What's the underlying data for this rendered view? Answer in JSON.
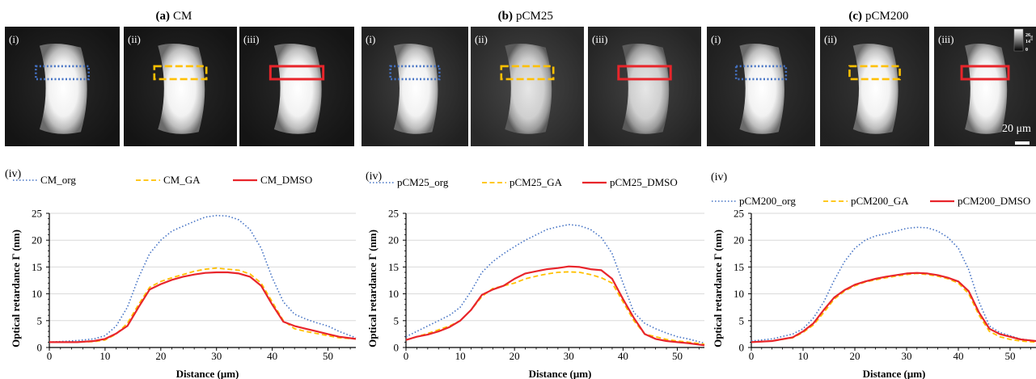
{
  "figure": {
    "panels": [
      {
        "id": "a",
        "title_letter": "(a)",
        "title_name": "CM",
        "image_labels": [
          "(i)",
          "(ii)",
          "(iii)"
        ],
        "plot_label": "(iv)",
        "legend": [
          {
            "name": "CM_org",
            "style": "dotted",
            "color": "#4472C4"
          },
          {
            "name": "CM_GA",
            "style": "dashed",
            "color": "#FFC000"
          },
          {
            "name": "CM_DMSO",
            "style": "solid",
            "color": "#E8252B"
          }
        ]
      },
      {
        "id": "b",
        "title_letter": "(b)",
        "title_name": "pCM25",
        "image_labels": [
          "(i)",
          "(ii)",
          "(iii)"
        ],
        "plot_label": "(iv)",
        "legend": [
          {
            "name": "pCM25_org",
            "style": "dotted",
            "color": "#4472C4"
          },
          {
            "name": "pCM25_GA",
            "style": "dashed",
            "color": "#FFC000"
          },
          {
            "name": "pCM25_DMSO",
            "style": "solid",
            "color": "#E8252B"
          }
        ]
      },
      {
        "id": "c",
        "title_letter": "(c)",
        "title_name": "pCM200",
        "image_labels": [
          "(i)",
          "(ii)",
          "(iii)"
        ],
        "plot_label": "(iv)",
        "legend": [
          {
            "name": "pCM200_org",
            "style": "dotted",
            "color": "#4472C4"
          },
          {
            "name": "pCM200_GA",
            "style": "dashed",
            "color": "#FFC000"
          },
          {
            "name": "pCM200_DMSO",
            "style": "solid",
            "color": "#E8252B"
          }
        ]
      }
    ],
    "colorbar": {
      "ticks": [
        "26",
        "14",
        "0"
      ],
      "unit": "nm"
    },
    "scale_bar": {
      "label": "20 μm"
    },
    "roi_colors": {
      "org": "#4472C4",
      "ga": "#FFC000",
      "dmso": "#E8252B"
    }
  },
  "chart_data": [
    {
      "type": "line",
      "title": "",
      "xlabel": "Distance (μm)",
      "ylabel": "Optical retardance Γ (nm)",
      "xlim": [
        0,
        55
      ],
      "ylim": [
        0,
        25
      ],
      "xticks": [
        0,
        10,
        20,
        30,
        40,
        50
      ],
      "yticks": [
        0,
        5,
        10,
        15,
        20,
        25
      ],
      "grid": "horizontal",
      "legend_position": "top",
      "series": [
        {
          "name": "CM_org",
          "x": [
            0,
            5,
            8,
            10,
            12,
            14,
            16,
            18,
            20,
            22,
            24,
            26,
            28,
            30,
            32,
            34,
            36,
            38,
            40,
            42,
            44,
            46,
            48,
            50,
            52,
            55
          ],
          "values": [
            1,
            1.3,
            1.6,
            2.2,
            4,
            7.5,
            13,
            17.5,
            20,
            21.7,
            22.6,
            23.5,
            24.3,
            24.6,
            24.5,
            23.8,
            22,
            18.5,
            13,
            8.5,
            6.2,
            5.3,
            4.6,
            4,
            3,
            1.8
          ]
        },
        {
          "name": "CM_GA",
          "x": [
            0,
            5,
            8,
            10,
            12,
            14,
            16,
            18,
            20,
            22,
            24,
            26,
            28,
            30,
            32,
            34,
            36,
            38,
            40,
            42,
            44,
            46,
            48,
            50,
            52,
            55
          ],
          "values": [
            1,
            1,
            1.1,
            1.4,
            2.5,
            4.5,
            8,
            11.2,
            12.3,
            13,
            13.6,
            14.2,
            14.6,
            14.8,
            14.6,
            14.4,
            13.7,
            12,
            8.5,
            5,
            3.5,
            3,
            2.6,
            2.2,
            1.8,
            1.6
          ]
        },
        {
          "name": "CM_DMSO",
          "x": [
            0,
            5,
            8,
            10,
            12,
            14,
            16,
            18,
            20,
            22,
            24,
            26,
            28,
            30,
            32,
            34,
            36,
            38,
            40,
            42,
            44,
            46,
            48,
            50,
            52,
            55
          ],
          "values": [
            1,
            1,
            1.2,
            1.6,
            2.6,
            4,
            7.5,
            10.8,
            11.8,
            12.6,
            13.2,
            13.6,
            13.9,
            14,
            14,
            13.8,
            13.2,
            11.5,
            8,
            4.8,
            4,
            3.5,
            3,
            2.5,
            2,
            1.6
          ]
        }
      ]
    },
    {
      "type": "line",
      "title": "",
      "xlabel": "Distance (μm)",
      "ylabel": "Optical retardance Γ (nm)",
      "xlim": [
        0,
        55
      ],
      "ylim": [
        0,
        25
      ],
      "xticks": [
        0,
        10,
        20,
        30,
        40,
        50
      ],
      "yticks": [
        0,
        5,
        10,
        15,
        20,
        25
      ],
      "grid": "horizontal",
      "legend_position": "top",
      "series": [
        {
          "name": "pCM25_org",
          "x": [
            0,
            2,
            4,
            6,
            8,
            10,
            12,
            14,
            16,
            18,
            20,
            22,
            24,
            26,
            28,
            30,
            32,
            34,
            36,
            38,
            40,
            42,
            44,
            46,
            48,
            50,
            52,
            55
          ],
          "values": [
            2,
            3,
            4,
            5,
            6,
            7.5,
            10.5,
            14,
            16,
            17.5,
            18.8,
            20,
            21,
            22,
            22.5,
            22.9,
            22.7,
            22,
            20.5,
            17.5,
            12,
            6.5,
            4.5,
            3.5,
            2.7,
            2,
            1.6,
            0.8
          ]
        },
        {
          "name": "pCM25_GA",
          "x": [
            0,
            2,
            4,
            6,
            8,
            10,
            12,
            14,
            16,
            18,
            20,
            22,
            24,
            26,
            28,
            30,
            32,
            34,
            36,
            38,
            40,
            42,
            44,
            46,
            48,
            50,
            52,
            55
          ],
          "values": [
            1.4,
            2,
            2.6,
            3.3,
            4,
            5,
            7,
            9.5,
            11,
            11.5,
            12,
            12.8,
            13.3,
            13.7,
            14,
            14.1,
            14,
            13.6,
            13,
            12,
            8.5,
            5,
            2.5,
            2,
            1.5,
            1.2,
            1,
            0.6
          ]
        },
        {
          "name": "pCM25_DMSO",
          "x": [
            0,
            2,
            4,
            6,
            8,
            10,
            12,
            14,
            16,
            18,
            20,
            22,
            24,
            26,
            28,
            30,
            32,
            34,
            36,
            38,
            40,
            42,
            44,
            46,
            48,
            50,
            52,
            55
          ],
          "values": [
            1.4,
            2,
            2.4,
            3,
            3.8,
            5,
            7,
            9.8,
            10.8,
            11.5,
            12.8,
            13.8,
            14.2,
            14.6,
            14.8,
            15.1,
            15,
            14.6,
            14.4,
            12.8,
            9,
            5.5,
            2.5,
            1.6,
            1.2,
            1,
            0.8,
            0.4
          ]
        }
      ]
    },
    {
      "type": "line",
      "title": "",
      "xlabel": "Distance (μm)",
      "ylabel": "Optical retardance Γ (nm)",
      "xlim": [
        0,
        55
      ],
      "ylim": [
        0,
        25
      ],
      "xticks": [
        0,
        10,
        20,
        30,
        40,
        50
      ],
      "yticks": [
        0,
        5,
        10,
        15,
        20,
        25
      ],
      "grid": "horizontal",
      "legend_position": "top",
      "series": [
        {
          "name": "pCM200_org",
          "x": [
            0,
            4,
            8,
            10,
            12,
            14,
            16,
            18,
            20,
            22,
            24,
            26,
            28,
            30,
            32,
            34,
            36,
            38,
            40,
            42,
            44,
            46,
            48,
            50,
            52,
            55
          ],
          "values": [
            1.2,
            1.6,
            2.5,
            3.5,
            5.5,
            8.5,
            12.5,
            16,
            18.5,
            20,
            20.8,
            21.2,
            21.7,
            22.2,
            22.4,
            22.3,
            21.7,
            20.5,
            18.5,
            14.5,
            8.5,
            4,
            2.8,
            2.2,
            1.6,
            1.2
          ]
        },
        {
          "name": "pCM200_GA",
          "x": [
            0,
            4,
            8,
            10,
            12,
            14,
            16,
            18,
            20,
            22,
            24,
            26,
            28,
            30,
            32,
            34,
            36,
            38,
            40,
            42,
            44,
            46,
            48,
            50,
            52,
            55
          ],
          "values": [
            1,
            1.2,
            1.8,
            2.8,
            4.2,
            6.5,
            9,
            10.5,
            11.5,
            12.2,
            12.6,
            13,
            13.3,
            13.6,
            13.8,
            13.6,
            13.3,
            12.8,
            12,
            10,
            6,
            3,
            2,
            1.5,
            1.2,
            1
          ]
        },
        {
          "name": "pCM200_DMSO",
          "x": [
            0,
            4,
            8,
            10,
            12,
            14,
            16,
            18,
            20,
            22,
            24,
            26,
            28,
            30,
            32,
            34,
            36,
            38,
            40,
            42,
            44,
            46,
            48,
            50,
            52,
            55
          ],
          "values": [
            1,
            1.2,
            1.9,
            3,
            4.5,
            7,
            9.3,
            10.7,
            11.7,
            12.3,
            12.8,
            13.2,
            13.5,
            13.8,
            13.9,
            13.8,
            13.5,
            13,
            12.3,
            10.5,
            6.5,
            3.5,
            2.5,
            2,
            1.5,
            1.2
          ]
        }
      ]
    }
  ]
}
